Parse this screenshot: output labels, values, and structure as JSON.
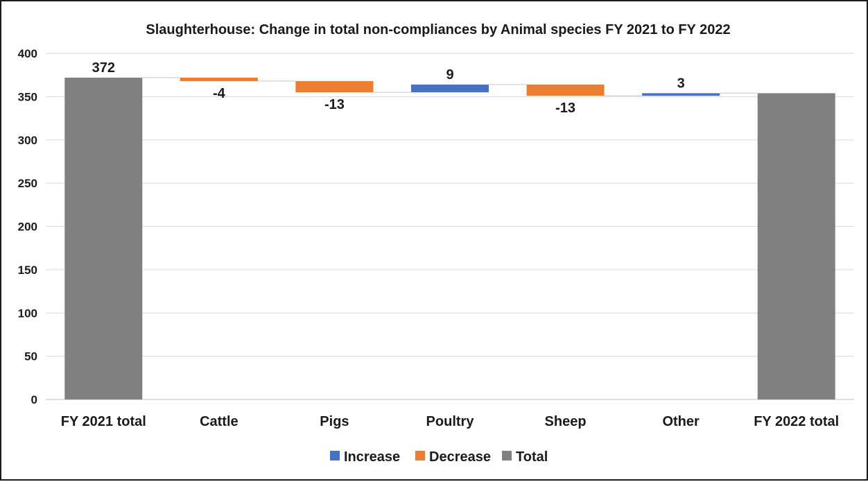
{
  "chart_data": {
    "type": "waterfall",
    "title": "Slaughterhouse: Change in total non-compliances by Animal species FY 2021 to FY 2022",
    "categories": [
      "FY 2021 total",
      "Cattle",
      "Pigs",
      "Poultry",
      "Sheep",
      "Other",
      "FY 2022 total"
    ],
    "values": [
      372,
      -4,
      -13,
      9,
      -13,
      3,
      354
    ],
    "kinds": [
      "total",
      "decrease",
      "decrease",
      "increase",
      "decrease",
      "increase",
      "total"
    ],
    "data_labels": [
      "372",
      "-4",
      "-13",
      "9",
      "-13",
      "3",
      ""
    ],
    "ylim": [
      0,
      400
    ],
    "yticks": [
      0,
      50,
      100,
      150,
      200,
      250,
      300,
      350,
      400
    ],
    "xlabel": "",
    "ylabel": "",
    "grid": true,
    "legend_position": "bottom",
    "legend": [
      {
        "key": "increase",
        "label": "Increase"
      },
      {
        "key": "decrease",
        "label": "Decrease"
      },
      {
        "key": "total",
        "label": "Total"
      }
    ],
    "colors": {
      "increase": "#4472c4",
      "decrease": "#ed7d31",
      "total": "#808080",
      "grid": "#d9d9d9",
      "connector": "#d9d9d9"
    }
  }
}
